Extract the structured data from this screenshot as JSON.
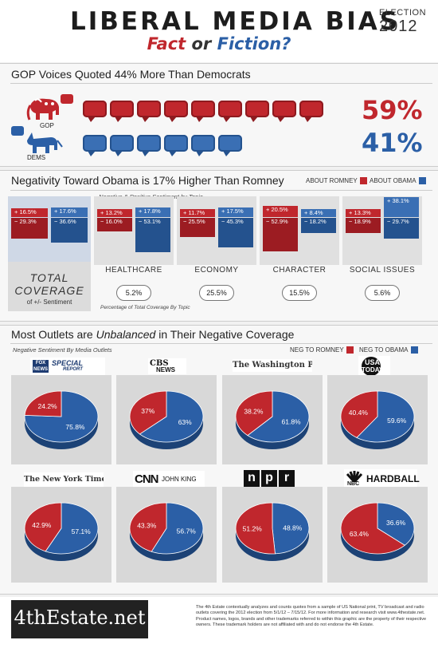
{
  "header": {
    "title": "LIBERAL MEDIA BIAS",
    "subtitle_fact": "Fact",
    "subtitle_or": "or",
    "subtitle_fiction": "Fiction?",
    "election_label": "ELECTION",
    "election_year": "2012"
  },
  "quotes_section": {
    "heading": "GOP Voices Quoted 44% More Than Democrats",
    "gop_label": "GOP",
    "dems_label": "DEMS",
    "gop_pct": "59%",
    "dems_pct": "41%",
    "gop_bubbles": 9,
    "dems_bubbles": 6,
    "colors": {
      "gop": "#c0272d",
      "dems": "#2b5fa6"
    }
  },
  "negativity_section": {
    "heading": "Negativity Toward Obama is 17% Higher Than Romney",
    "legend_romney": "ABOUT ROMNEY",
    "legend_obama": "ABOUT OBAMA",
    "topic_caption": "Negative & Positive Sentiment by Topic",
    "total_label_1": "TOTAL",
    "total_label_2": "COVERAGE",
    "total_label_3": "of +/- Sentiment",
    "footnote": "Percentage of Total Coverage By Topic"
  },
  "outlets_section": {
    "heading_pre": "Most Outlets are ",
    "heading_em": "Unbalanced",
    "heading_post": " in Their Negative Coverage",
    "caption": "Negative Sentiment By Media Outlets",
    "legend_romney": "NEG TO ROMNEY",
    "legend_obama": "NEG TO OBAMA",
    "logos": {
      "fox_1": "FOX",
      "fox_2": "NEWS",
      "fox_3": "SPECIAL",
      "fox_4": "REPORT",
      "cbs_1": "CBS",
      "cbs_2": "NEWS",
      "wapo": "The Washington Post",
      "usa_1": "USA",
      "usa_2": "TODAY",
      "nyt": "The New York Times",
      "cnn": "CNN",
      "cnn_2": "JOHN KING",
      "npr_n": "n",
      "npr_p": "p",
      "npr_r": "r",
      "nbc": "NBC",
      "msnbc_2": "HARDBALL"
    }
  },
  "footer": {
    "brand": "4thEstate.net",
    "disclaimer": "The 4th Estate contextually analyzes and counts quotes from a sample of US National print, TV broadcast and radio outlets covering the 2012 election from 5/1/12 – 7/15/12. For more information and research visit www.4thestate.net. Product names, logos, brands and other trademarks referred to within this graphic are the property of their respective owners. These trademark holders are not affiliated with and do not endorse the 4th Estate."
  },
  "chart_data": [
    {
      "type": "bar",
      "categories": [
        "TOTAL COVERAGE",
        "HEALTHCARE",
        "ECONOMY",
        "CHARACTER",
        "SOCIAL ISSUES"
      ],
      "series": [
        {
          "name": "ABOUT ROMNEY",
          "positive": [
            16.5,
            13.2,
            11.7,
            20.5,
            13.3
          ],
          "negative": [
            29.3,
            16.0,
            25.5,
            52.9,
            18.9
          ]
        },
        {
          "name": "ABOUT OBAMA",
          "positive": [
            17.6,
            17.8,
            17.5,
            8.4,
            38.1
          ],
          "negative": [
            36.6,
            53.1,
            45.3,
            18.2,
            29.7
          ]
        }
      ],
      "share_of_coverage": [
        "",
        "5.2%",
        "25.5%",
        "15.5%",
        "5.6%"
      ],
      "labels": {
        "romney_pos": [
          "+ 16.5%",
          "+ 13.2%",
          "+ 11.7%",
          "+ 20.5%",
          "+ 13.3%"
        ],
        "romney_neg": [
          "− 29.3%",
          "− 16.0%",
          "− 25.5%",
          "− 52.9%",
          "− 18.9%"
        ],
        "obama_pos": [
          "+ 17.6%",
          "+ 17.8%",
          "+ 17.5%",
          "+ 8.4%",
          "+ 38.1%"
        ],
        "obama_neg": [
          "− 36.6%",
          "− 53.1%",
          "− 45.3%",
          "− 18.2%",
          "− 29.7%"
        ]
      }
    },
    {
      "type": "pie",
      "outlets": [
        "FOX NEWS SPECIAL REPORT",
        "CBS NEWS",
        "The Washington Post",
        "USA TODAY",
        "The New York Times",
        "CNN JOHN KING",
        "npr",
        "MSNBC HARDBALL"
      ],
      "series": [
        {
          "name": "NEG TO ROMNEY",
          "values": [
            24.2,
            37,
            38.2,
            40.4,
            42.9,
            43.3,
            51.2,
            63.4
          ],
          "labels": [
            "24.2%",
            "37%",
            "38.2%",
            "40.4%",
            "42.9%",
            "43.3%",
            "51.2%",
            "63.4%"
          ]
        },
        {
          "name": "NEG TO OBAMA",
          "values": [
            75.8,
            63,
            61.8,
            59.6,
            57.1,
            56.7,
            48.8,
            36.6
          ],
          "labels": [
            "75.8%",
            "63%",
            "61.8%",
            "59.6%",
            "57.1%",
            "56.7%",
            "48.8%",
            "36.6%"
          ]
        }
      ],
      "colors": {
        "romney": "#c0272d",
        "obama": "#2b5fa6"
      }
    }
  ]
}
